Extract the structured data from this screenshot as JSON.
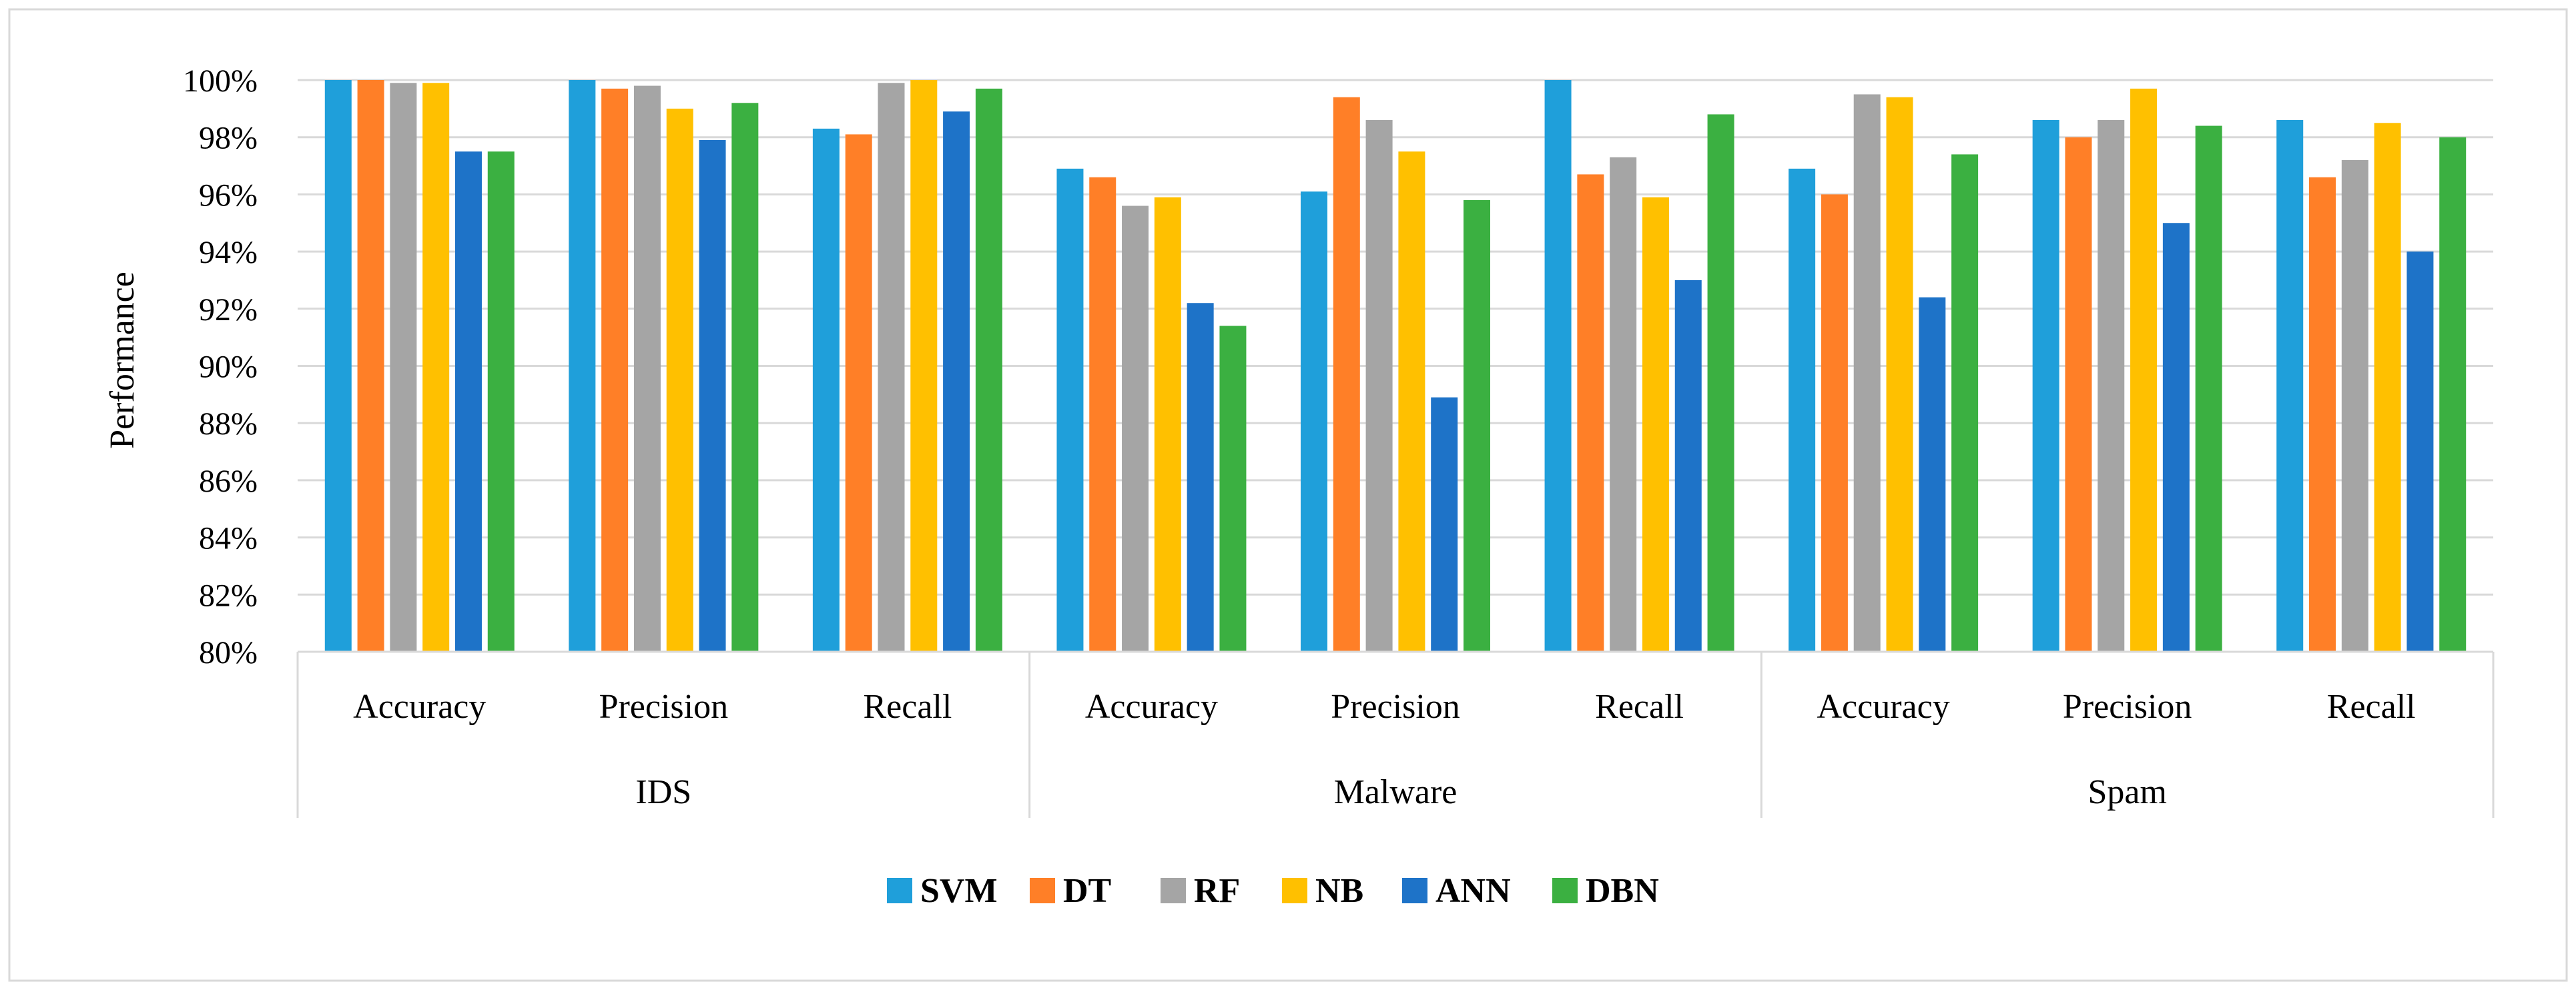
{
  "chart_data": {
    "type": "bar",
    "ylabel": "Performance",
    "ylim": [
      80,
      100
    ],
    "ytick_step": 2,
    "ytick_suffix": "%",
    "grid": true,
    "legend_position": "bottom",
    "groups": [
      {
        "name": "IDS",
        "categories": [
          "Accuracy",
          "Precision",
          "Recall"
        ]
      },
      {
        "name": "Malware",
        "categories": [
          "Accuracy",
          "Precision",
          "Recall"
        ]
      },
      {
        "name": "Spam",
        "categories": [
          "Accuracy",
          "Precision",
          "Recall"
        ]
      }
    ],
    "series": [
      {
        "name": "SVM",
        "color": "#1F9FDA",
        "values": [
          100,
          100,
          98.3,
          96.9,
          96.1,
          100,
          96.9,
          98.6,
          98.6
        ]
      },
      {
        "name": "DT",
        "color": "#FF7F27",
        "values": [
          100,
          99.7,
          98.1,
          96.6,
          99.4,
          96.7,
          96.0,
          98.0,
          96.6
        ]
      },
      {
        "name": "RF",
        "color": "#A5A5A5",
        "values": [
          99.9,
          99.8,
          99.9,
          95.6,
          98.6,
          97.3,
          99.5,
          98.6,
          97.2
        ]
      },
      {
        "name": "NB",
        "color": "#FFC000",
        "values": [
          99.9,
          99.0,
          100,
          95.9,
          97.5,
          95.9,
          99.4,
          99.7,
          98.5
        ]
      },
      {
        "name": "ANN",
        "color": "#1E73C8",
        "values": [
          97.5,
          97.9,
          98.9,
          92.2,
          88.9,
          93.0,
          92.4,
          95.0,
          94.0
        ]
      },
      {
        "name": "DBN",
        "color": "#3BB041",
        "values": [
          97.5,
          99.2,
          99.7,
          91.4,
          95.8,
          98.8,
          97.4,
          98.4,
          98.0
        ]
      }
    ]
  }
}
